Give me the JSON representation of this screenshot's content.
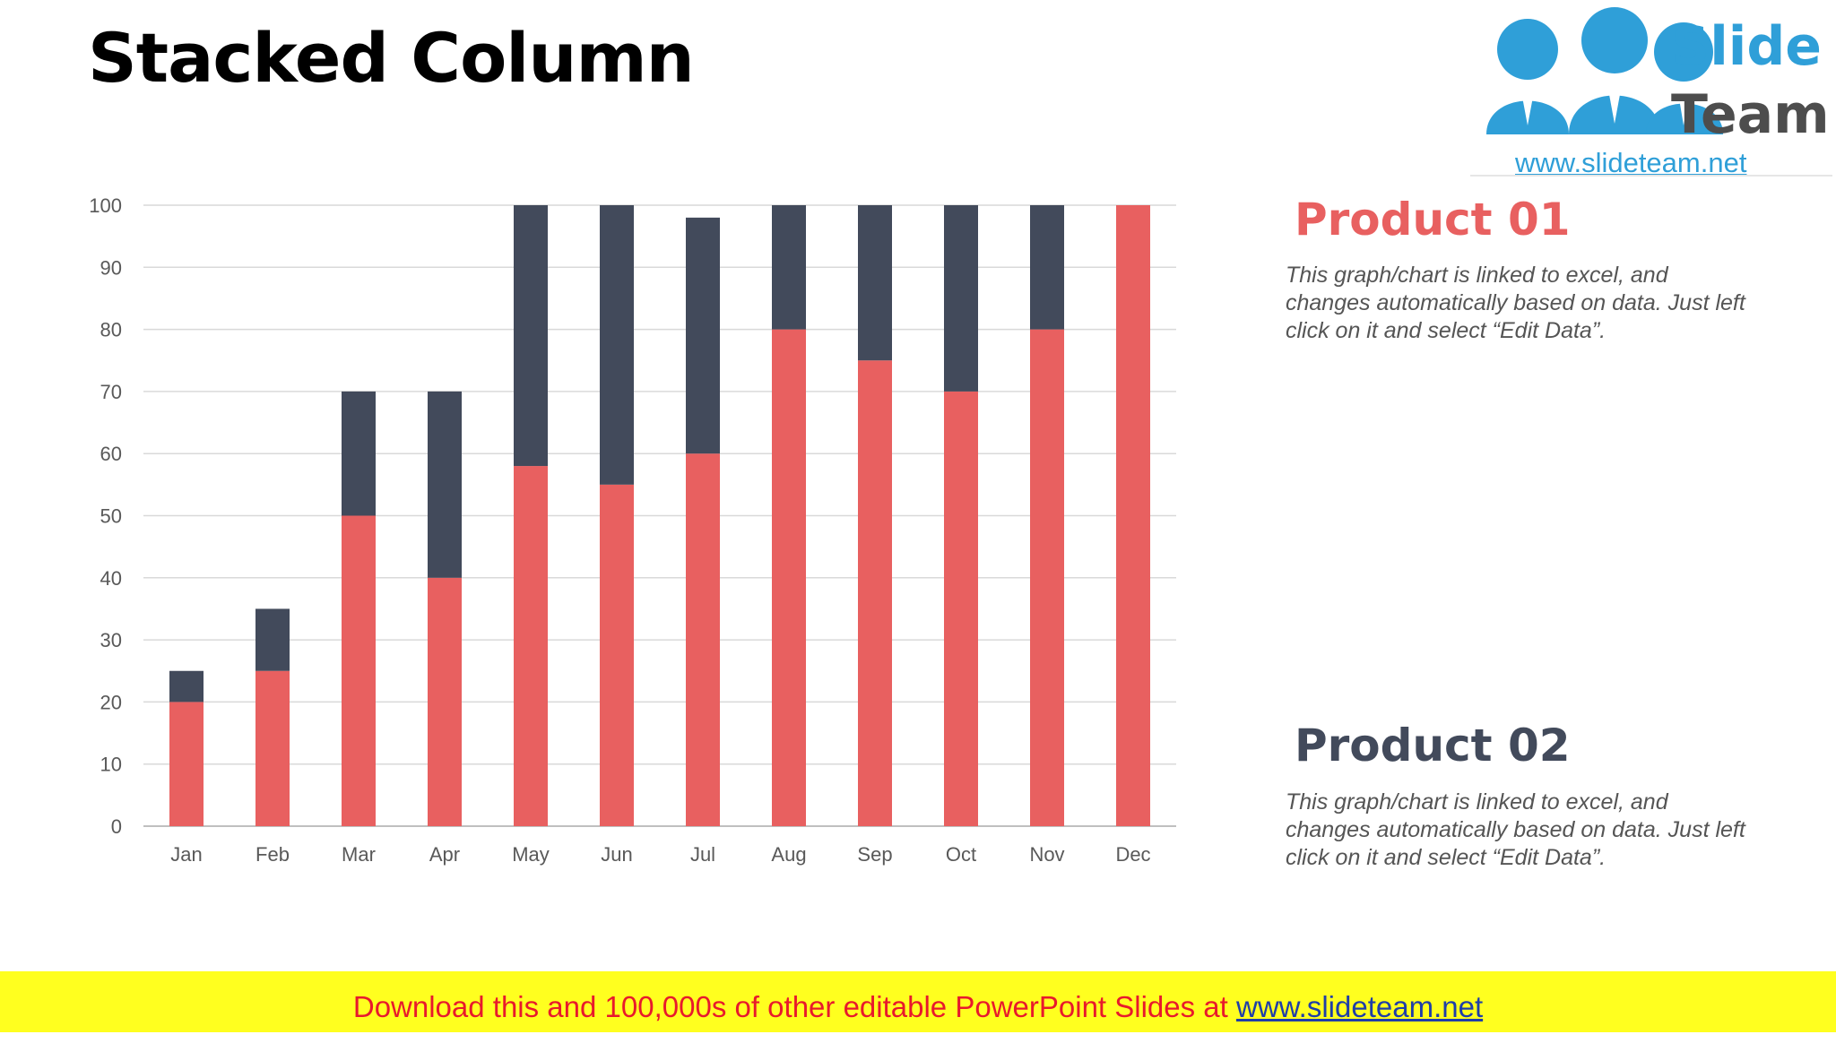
{
  "slide": {
    "title": "Stacked Column"
  },
  "logo": {
    "word1": "Slide",
    "word2": "Team",
    "url": "www.slideteam.net"
  },
  "products": [
    {
      "heading": "Product 01",
      "description": "This graph/chart is linked to excel, and changes automatically based on data. Just left click on it and select “Edit Data”.",
      "color": "#e86060"
    },
    {
      "heading": "Product 02",
      "description": "This graph/chart is linked to excel, and changes automatically based on data. Just left click on it and select “Edit Data”.",
      "color": "#424a5b"
    }
  ],
  "banner": {
    "text": "Download this and 100,000s of other editable PowerPoint Slides at ",
    "link": "www.slideteam.net"
  },
  "chart_data": {
    "type": "bar",
    "stacked": true,
    "categories": [
      "Jan",
      "Feb",
      "Mar",
      "Apr",
      "May",
      "Jun",
      "Jul",
      "Aug",
      "Sep",
      "Oct",
      "Nov",
      "Dec"
    ],
    "series": [
      {
        "values": [
          20,
          25,
          50,
          40,
          58,
          55,
          60,
          80,
          75,
          70,
          80,
          100
        ],
        "color": "#e86060"
      },
      {
        "values": [
          5,
          10,
          20,
          30,
          42,
          45,
          38,
          20,
          25,
          30,
          20,
          0
        ],
        "color": "#424a5b"
      }
    ],
    "ylim": [
      0,
      100
    ],
    "yticks": [
      0,
      10,
      20,
      30,
      40,
      50,
      60,
      70,
      80,
      90,
      100
    ],
    "grid": true,
    "legend": "none"
  }
}
